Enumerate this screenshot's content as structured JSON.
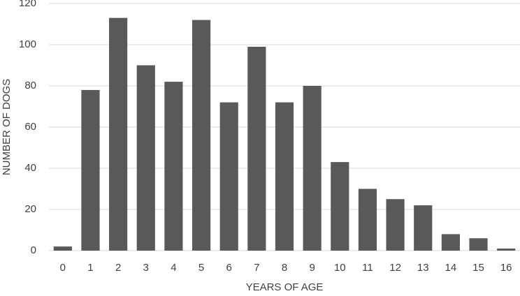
{
  "chart_data": {
    "type": "bar",
    "xlabel": "YEARS OF AGE",
    "ylabel": "NUMBER OF DOGS",
    "categories": [
      "0",
      "1",
      "2",
      "3",
      "4",
      "5",
      "6",
      "7",
      "8",
      "9",
      "10",
      "11",
      "12",
      "13",
      "14",
      "15",
      "16"
    ],
    "values": [
      2,
      78,
      113,
      90,
      82,
      112,
      72,
      99,
      72,
      80,
      43,
      30,
      25,
      22,
      8,
      6,
      1
    ],
    "color": "#595959",
    "ylim": [
      0,
      120
    ],
    "yticks": [
      0,
      20,
      40,
      60,
      80,
      100,
      120
    ],
    "grid": true
  }
}
